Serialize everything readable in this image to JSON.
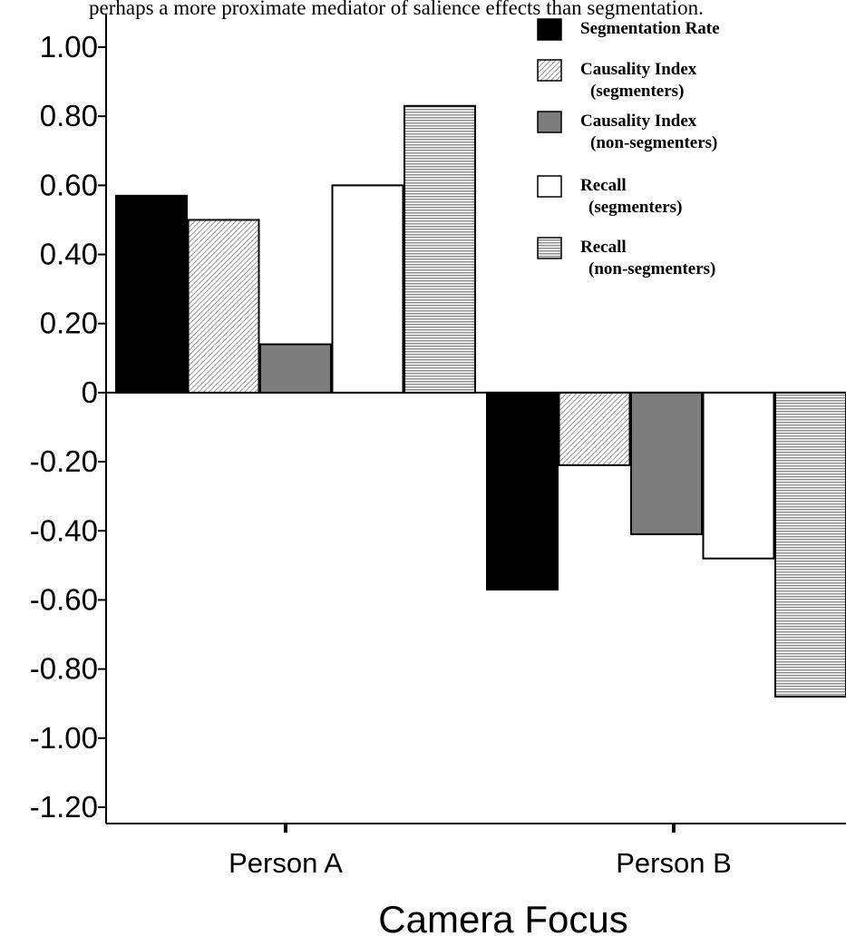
{
  "caption": "perhaps a more proximate mediator of salience effects than segmentation.",
  "chart_data": {
    "type": "bar",
    "title": "",
    "xlabel": "Camera Focus",
    "ylabel": "",
    "ylim": [
      -1.2,
      1.0
    ],
    "y_ticks": [
      "1.00",
      "0.80",
      "0.60",
      "0.40",
      "0.20",
      "0",
      "-0.20",
      "-0.40",
      "-0.60",
      "-0.80",
      "-1.00",
      "-1.20"
    ],
    "y_tick_values": [
      1.0,
      0.8,
      0.6,
      0.4,
      0.2,
      0,
      -0.2,
      -0.4,
      -0.6,
      -0.8,
      -1.0,
      -1.2
    ],
    "categories": [
      "Person A",
      "Person B"
    ],
    "legend_position": "top-right",
    "grid": false,
    "series": [
      {
        "name": "Segmentation Rate",
        "name_lines": [
          "Segmentation Rate"
        ],
        "fill": "solid-black",
        "values": [
          0.57,
          -0.57
        ]
      },
      {
        "name": "Causality Index (segmenters)",
        "name_lines": [
          "Causality Index",
          "(segmenters)"
        ],
        "fill": "diagonal-hatch",
        "values": [
          0.5,
          -0.21
        ]
      },
      {
        "name": "Causality Index (non-segmenters)",
        "name_lines": [
          "Causality Index",
          "(non-segmenters)"
        ],
        "fill": "solid-gray",
        "values": [
          0.14,
          -0.41
        ]
      },
      {
        "name": "Recall (segmenters)",
        "name_lines": [
          "Recall",
          "(segmenters)"
        ],
        "fill": "white",
        "values": [
          0.6,
          -0.48
        ]
      },
      {
        "name": "Recall (non-segmenters)",
        "name_lines": [
          "Recall",
          "(non-segmenters)"
        ],
        "fill": "horizontal-stripes",
        "values": [
          0.83,
          -0.88
        ]
      }
    ]
  }
}
